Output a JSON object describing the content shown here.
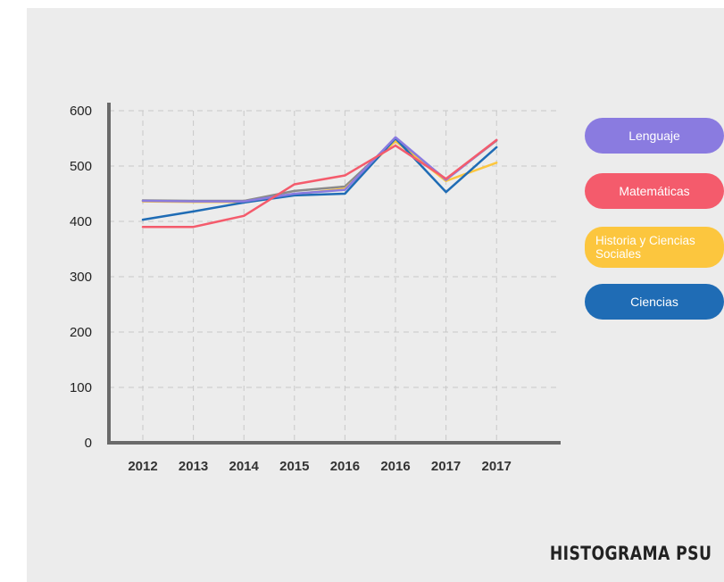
{
  "chart_data": {
    "type": "line",
    "title": "HISTOGRAMA PSU",
    "xlabel": "",
    "ylabel": "",
    "categories": [
      "2012",
      "2013",
      "2014",
      "2015",
      "2016",
      "2016",
      "2017",
      "2017"
    ],
    "yticks": [
      "0",
      "100",
      "200",
      "300",
      "400",
      "500",
      "600"
    ],
    "ylim": [
      0,
      600
    ],
    "grid": true,
    "legend_position": "right",
    "series": [
      {
        "name": "Lenguaje",
        "color": "#8a7be0",
        "values": [
          437,
          436,
          436,
          450,
          457,
          552,
          475,
          547
        ]
      },
      {
        "name": "Matemáticas",
        "color": "#f45b6c",
        "values": [
          390,
          390,
          410,
          467,
          483,
          537,
          477,
          547
        ]
      },
      {
        "name": "Historia y Ciencias Sociales",
        "color": "#fcc63e",
        "values": [
          436,
          435,
          435,
          449,
          459,
          545,
          473,
          506
        ]
      },
      {
        "name": "Ciencias",
        "color": "#1f6cb5",
        "values": [
          403,
          418,
          434,
          447,
          450,
          550,
          453,
          534
        ]
      },
      {
        "name": "",
        "color": "#8a8a8a",
        "values": [
          438,
          437,
          437,
          455,
          463,
          548,
          476,
          546
        ]
      }
    ]
  },
  "legend": {
    "items": [
      {
        "label": "Lenguaje",
        "color": "#8a7be0"
      },
      {
        "label": "Matemáticas",
        "color": "#f45b6c"
      },
      {
        "label": "Historia y Ciencias Sociales",
        "color": "#fcc63e"
      },
      {
        "label": "Ciencias",
        "color": "#1f6cb5"
      }
    ]
  },
  "footer": {
    "title": "HISTOGRAMA PSU"
  }
}
